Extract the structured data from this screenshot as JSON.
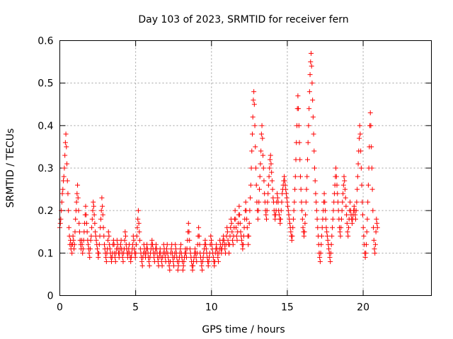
{
  "chart_data": {
    "type": "scatter",
    "title": "Day 103 of 2023, SRMTID for receiver fern",
    "xlabel": "GPS time / hours",
    "ylabel": "SRMTID / TECUs",
    "xlim": [
      0,
      24.5
    ],
    "ylim": [
      0,
      0.6
    ],
    "xticks": [
      0,
      5,
      10,
      15,
      20
    ],
    "xtick_labels": [
      "0",
      "5",
      "10",
      "15",
      "20"
    ],
    "yticks": [
      0,
      0.1,
      0.2,
      0.3,
      0.4,
      0.5,
      0.6
    ],
    "ytick_labels": [
      "0",
      "0.1",
      "0.2",
      "0.3",
      "0.4",
      "0.5",
      "0.6"
    ],
    "grid": true,
    "marker": "+",
    "color": "#ff0000",
    "x_start": 0.0,
    "x_step": 0.0334,
    "series": [
      {
        "name": "SRMTID",
        "values": [
          0.16,
          0.17,
          0.18,
          0.2,
          0.22,
          0.24,
          0.25,
          0.27,
          0.28,
          0.3,
          0.33,
          0.36,
          0.38,
          0.35,
          0.31,
          0.27,
          0.24,
          0.2,
          0.16,
          0.14,
          0.12,
          0.13,
          0.11,
          0.12,
          0.1,
          0.12,
          0.14,
          0.13,
          0.11,
          0.12,
          0.15,
          0.18,
          0.2,
          0.22,
          0.24,
          0.26,
          0.23,
          0.2,
          0.17,
          0.15,
          0.13,
          0.12,
          0.11,
          0.13,
          0.12,
          0.1,
          0.11,
          0.13,
          0.15,
          0.17,
          0.19,
          0.21,
          0.19,
          0.17,
          0.15,
          0.13,
          0.12,
          0.11,
          0.1,
          0.09,
          0.11,
          0.13,
          0.14,
          0.16,
          0.18,
          0.2,
          0.22,
          0.21,
          0.19,
          0.17,
          0.15,
          0.14,
          0.13,
          0.12,
          0.11,
          0.1,
          0.09,
          0.1,
          0.12,
          0.14,
          0.16,
          0.18,
          0.2,
          0.23,
          0.21,
          0.19,
          0.16,
          0.14,
          0.12,
          0.11,
          0.1,
          0.09,
          0.08,
          0.1,
          0.11,
          0.13,
          0.15,
          0.14,
          0.12,
          0.11,
          0.1,
          0.09,
          0.08,
          0.09,
          0.1,
          0.12,
          0.13,
          0.12,
          0.1,
          0.09,
          0.08,
          0.1,
          0.11,
          0.13,
          0.12,
          0.11,
          0.1,
          0.09,
          0.1,
          0.11,
          0.12,
          0.13,
          0.11,
          0.1,
          0.09,
          0.08,
          0.1,
          0.11,
          0.13,
          0.15,
          0.14,
          0.12,
          0.11,
          0.1,
          0.09,
          0.1,
          0.11,
          0.12,
          0.1,
          0.09,
          0.08,
          0.09,
          0.1,
          0.11,
          0.12,
          0.14,
          0.13,
          0.11,
          0.1,
          0.09,
          0.1,
          0.12,
          0.14,
          0.16,
          0.18,
          0.2,
          0.17,
          0.15,
          0.13,
          0.11,
          0.1,
          0.09,
          0.08,
          0.07,
          0.09,
          0.1,
          0.12,
          0.11,
          0.1,
          0.09,
          0.1,
          0.11,
          0.12,
          0.11,
          0.1,
          0.09,
          0.08,
          0.07,
          0.09,
          0.1,
          0.11,
          0.12,
          0.13,
          0.12,
          0.11,
          0.1,
          0.09,
          0.08,
          0.1,
          0.11,
          0.12,
          0.11,
          0.1,
          0.09,
          0.08,
          0.07,
          0.09,
          0.1,
          0.11,
          0.1,
          0.09,
          0.08,
          0.07,
          0.09,
          0.1,
          0.12,
          0.11,
          0.1,
          0.09,
          0.08,
          0.1,
          0.11,
          0.12,
          0.1,
          0.09,
          0.08,
          0.07,
          0.06,
          0.08,
          0.1,
          0.11,
          0.12,
          0.1,
          0.09,
          0.08,
          0.07,
          0.09,
          0.1,
          0.12,
          0.11,
          0.1,
          0.09,
          0.08,
          0.06,
          0.07,
          0.08,
          0.09,
          0.1,
          0.11,
          0.12,
          0.1,
          0.09,
          0.08,
          0.06,
          0.07,
          0.08,
          0.09,
          0.1,
          0.11,
          0.1,
          0.09,
          0.11,
          0.13,
          0.15,
          0.17,
          0.15,
          0.13,
          0.11,
          0.1,
          0.09,
          0.08,
          0.07,
          0.06,
          0.07,
          0.08,
          0.09,
          0.1,
          0.11,
          0.1,
          0.09,
          0.08,
          0.1,
          0.12,
          0.14,
          0.16,
          0.14,
          0.12,
          0.1,
          0.09,
          0.08,
          0.07,
          0.06,
          0.08,
          0.09,
          0.1,
          0.11,
          0.12,
          0.13,
          0.12,
          0.11,
          0.1,
          0.09,
          0.08,
          0.07,
          0.08,
          0.09,
          0.1,
          0.12,
          0.14,
          0.13,
          0.12,
          0.11,
          0.1,
          0.09,
          0.08,
          0.07,
          0.08,
          0.1,
          0.11,
          0.12,
          0.11,
          0.1,
          0.09,
          0.08,
          0.1,
          0.11,
          0.13,
          0.12,
          0.11,
          0.1,
          0.11,
          0.12,
          0.13,
          0.14,
          0.13,
          0.12,
          0.11,
          0.1,
          0.12,
          0.14,
          0.16,
          0.15,
          0.13,
          0.12,
          0.1,
          0.12,
          0.14,
          0.16,
          0.18,
          0.17,
          0.15,
          0.13,
          0.12,
          0.14,
          0.16,
          0.18,
          0.2,
          0.18,
          0.16,
          0.14,
          0.13,
          0.15,
          0.17,
          0.19,
          0.21,
          0.19,
          0.17,
          0.15,
          0.14,
          0.13,
          0.12,
          0.11,
          0.12,
          0.14,
          0.16,
          0.18,
          0.2,
          0.22,
          0.2,
          0.18,
          0.16,
          0.14,
          0.12,
          0.14,
          0.17,
          0.2,
          0.23,
          0.26,
          0.3,
          0.34,
          0.38,
          0.42,
          0.46,
          0.48,
          0.45,
          0.4,
          0.35,
          0.3,
          0.26,
          0.22,
          0.2,
          0.18,
          0.2,
          0.22,
          0.25,
          0.28,
          0.31,
          0.34,
          0.38,
          0.4,
          0.37,
          0.33,
          0.3,
          0.27,
          0.24,
          0.22,
          0.2,
          0.19,
          0.18,
          0.2,
          0.22,
          0.24,
          0.26,
          0.28,
          0.3,
          0.32,
          0.33,
          0.31,
          0.29,
          0.27,
          0.25,
          0.23,
          0.22,
          0.2,
          0.19,
          0.18,
          0.19,
          0.2,
          0.22,
          0.24,
          0.23,
          0.22,
          0.2,
          0.19,
          0.18,
          0.17,
          0.18,
          0.2,
          0.22,
          0.24,
          0.25,
          0.26,
          0.27,
          0.28,
          0.27,
          0.26,
          0.25,
          0.24,
          0.23,
          0.22,
          0.21,
          0.2,
          0.19,
          0.18,
          0.17,
          0.16,
          0.15,
          0.14,
          0.13,
          0.14,
          0.16,
          0.18,
          0.2,
          0.22,
          0.25,
          0.28,
          0.32,
          0.36,
          0.4,
          0.44,
          0.47,
          0.44,
          0.4,
          0.36,
          0.32,
          0.28,
          0.25,
          0.22,
          0.2,
          0.18,
          0.16,
          0.15,
          0.14,
          0.15,
          0.17,
          0.19,
          0.22,
          0.25,
          0.28,
          0.32,
          0.36,
          0.4,
          0.44,
          0.48,
          0.52,
          0.55,
          0.57,
          0.54,
          0.5,
          0.46,
          0.42,
          0.38,
          0.34,
          0.3,
          0.27,
          0.24,
          0.22,
          0.2,
          0.18,
          0.16,
          0.14,
          0.12,
          0.1,
          0.09,
          0.08,
          0.1,
          0.12,
          0.14,
          0.16,
          0.18,
          0.2,
          0.22,
          0.24,
          0.22,
          0.2,
          0.18,
          0.16,
          0.15,
          0.14,
          0.13,
          0.12,
          0.11,
          0.1,
          0.09,
          0.08,
          0.1,
          0.12,
          0.14,
          0.16,
          0.18,
          0.2,
          0.22,
          0.24,
          0.26,
          0.28,
          0.3,
          0.28,
          0.26,
          0.24,
          0.22,
          0.2,
          0.18,
          0.16,
          0.15,
          0.14,
          0.16,
          0.18,
          0.2,
          0.22,
          0.24,
          0.26,
          0.28,
          0.27,
          0.25,
          0.23,
          0.21,
          0.19,
          0.17,
          0.15,
          0.14,
          0.16,
          0.18,
          0.2,
          0.22,
          0.2,
          0.19,
          0.18,
          0.17,
          0.18,
          0.19,
          0.2,
          0.21,
          0.2,
          0.19,
          0.18,
          0.2,
          0.22,
          0.25,
          0.28,
          0.31,
          0.34,
          0.37,
          0.4,
          0.38,
          0.34,
          0.3,
          0.26,
          0.22,
          0.19,
          0.16,
          0.14,
          0.12,
          0.1,
          0.09,
          0.1,
          0.12,
          0.15,
          0.18,
          0.22,
          0.26,
          0.3,
          0.35,
          0.4,
          0.43,
          0.4,
          0.35,
          0.3,
          0.25,
          0.2,
          0.16,
          0.13,
          0.11,
          0.1,
          0.12,
          0.15,
          0.18,
          0.17,
          0.16
        ]
      }
    ]
  }
}
